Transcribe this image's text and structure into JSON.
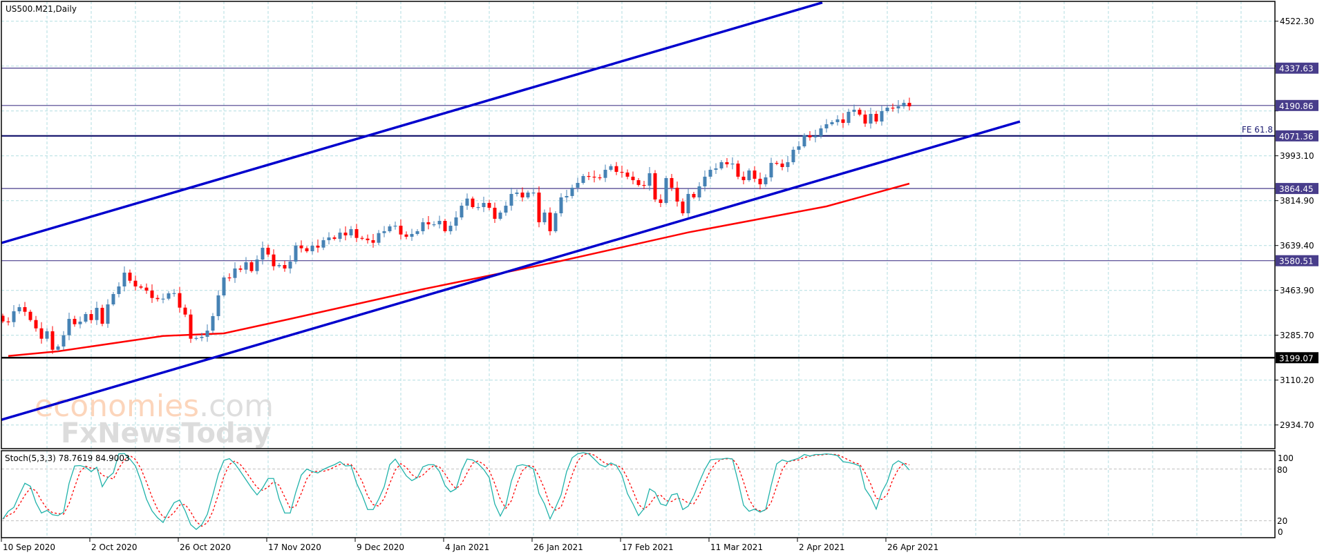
{
  "header": {
    "symbol_label": "US500.M21,Daily"
  },
  "colors": {
    "bull": "#4682b4",
    "bear": "#ff0000",
    "grid": "#b0dde0",
    "stoch_grid": "#c0c0c0",
    "level": "#483d8b",
    "level_strong": "#191970",
    "support": "#000000",
    "trendline": "#0000cd",
    "ma": "#ff0000",
    "stoch_k": "#20b2aa",
    "stoch_d": "#ff0000"
  },
  "chart_data": {
    "type": "candlestick",
    "title": "US500.M21,Daily",
    "ylim": [
      2841.5,
      4600.2
    ],
    "x_tick_labels": [
      "10 Sep 2020",
      "2 Oct 2020",
      "26 Oct 2020",
      "17 Nov 2020",
      "9 Dec 2020",
      "4 Jan 2021",
      "26 Jan 2021",
      "17 Feb 2021",
      "11 Mar 2021",
      "2 Apr 2021",
      "26 Apr 2021"
    ],
    "x_tick_bar_index": [
      0,
      16,
      32,
      48,
      64,
      80,
      96,
      112,
      128,
      144,
      160
    ],
    "y_tick_labels": [
      "4522.30",
      "3993.10",
      "3814.90",
      "3639.40",
      "3463.90",
      "3285.70",
      "3110.20",
      "2934.70"
    ],
    "y_tick_values": [
      4522.3,
      3993.1,
      3814.9,
      3639.4,
      3463.9,
      3285.7,
      3110.2,
      2934.7
    ],
    "first_open": 3364.0,
    "closes": [
      3341.7,
      3339.0,
      3381.6,
      3397.9,
      3379.7,
      3347.1,
      3314.5,
      3273.8,
      3302.9,
      3230.4,
      3243.2,
      3287.4,
      3351.7,
      3330.8,
      3340.9,
      3370.7,
      3347.1,
      3395.2,
      3332.7,
      3408.7,
      3449.4,
      3479.3,
      3533.6,
      3501.8,
      3479.3,
      3474.7,
      3463.0,
      3434.0,
      3429.6,
      3431.2,
      3452.1,
      3453.0,
      3396.0,
      3368.8,
      3273.8,
      3276.5,
      3281.2,
      3305.6,
      3362.6,
      3444.0,
      3514.6,
      3512.7,
      3549.9,
      3545.2,
      3574.3,
      3539.8,
      3585.1,
      3631.3,
      3604.9,
      3558.8,
      3563.4,
      3549.9,
      3577.0,
      3640.2,
      3629.4,
      3617.7,
      3639.4,
      3632.1,
      3661.1,
      3672.0,
      3666.6,
      3691.0,
      3680.1,
      3704.6,
      3670.1,
      3667.4,
      3661.1,
      3651.1,
      3689.1,
      3696.4,
      3715.4,
      3718.1,
      3683.6,
      3674.7,
      3685.6,
      3696.4,
      3731.7,
      3723.5,
      3723.5,
      3737.1,
      3696.4,
      3718.1,
      3750.7,
      3796.8,
      3824.8,
      3791.4,
      3791.4,
      3807.7,
      3788.7,
      3745.3,
      3769.7,
      3796.8,
      3843.0,
      3848.4,
      3829.4,
      3848.4,
      3848.4,
      3731.7,
      3769.7,
      3696.4,
      3767.0,
      3829.4,
      3834.8,
      3867.4,
      3886.4,
      3913.5,
      3910.8,
      3908.1,
      3906.2,
      3938.0,
      3952.3,
      3929.8,
      3927.1,
      3910.8,
      3897.2,
      3878.2,
      3875.5,
      3924.4,
      3821.3,
      3807.7,
      3905.4,
      3867.4,
      3813.1,
      3767.0,
      3843.0,
      3829.4,
      3872.8,
      3910.8,
      3938.0,
      3943.4,
      3967.8,
      3959.7,
      3962.4,
      3910.8,
      3897.2,
      3935.2,
      3902.7,
      3881.0,
      3908.1,
      3965.1,
      3962.4,
      3948.8,
      3967.8,
      4016.7,
      4030.2,
      4073.7,
      4065.5,
      4070.9,
      4100.8,
      4117.1,
      4125.2,
      4136.1,
      4122.5,
      4165.9,
      4174.1,
      4155.1,
      4119.8,
      4157.8,
      4127.9,
      4168.6,
      4182.2,
      4179.5,
      4187.6,
      4201.2,
      4187.6
    ],
    "moving_average": {
      "points": [
        [
          1,
          3206.0
        ],
        [
          10,
          3224.2
        ],
        [
          29,
          3284.7
        ],
        [
          40,
          3294.7
        ],
        [
          52,
          3351.7
        ],
        [
          76,
          3468.4
        ],
        [
          101,
          3579.7
        ],
        [
          124,
          3691.8
        ],
        [
          149,
          3794.1
        ],
        [
          164,
          3883.7
        ]
      ]
    },
    "horizontal_levels": [
      {
        "label": "4337.63",
        "price": 4337.63,
        "style": "level"
      },
      {
        "label": "4190.86",
        "price": 4190.86,
        "style": "level"
      },
      {
        "label": "4071.36",
        "price": 4071.36,
        "style": "level_strong"
      },
      {
        "label": "3864.45",
        "price": 3864.45,
        "style": "level"
      },
      {
        "label": "3580.51",
        "price": 3580.51,
        "style": "level"
      },
      {
        "label": "3199.07",
        "price": 3199.07,
        "style": "support"
      }
    ],
    "annotation": {
      "text": "FE 61.8",
      "price": 4071.36
    },
    "trendlines": [
      {
        "from": [
          -0.5,
          3650.3
        ],
        "to": [
          148.25,
          4595.6
        ]
      },
      {
        "from": [
          -0.5,
          2954.9
        ],
        "to": [
          184.0,
          4127.9
        ]
      }
    ],
    "stochastic": {
      "label": "Stoch(5,3,3)",
      "k_last": "78.7619",
      "d_last": "84.9003",
      "d_period": 3,
      "levels": [
        80,
        20
      ],
      "axis_labels": [
        "100",
        "80",
        "20",
        "0"
      ],
      "k": [
        22,
        31,
        35.5,
        50,
        63.5,
        60,
        41,
        29,
        32,
        27,
        26,
        30,
        63.5,
        83.5,
        84,
        82,
        77,
        82,
        59.5,
        70,
        75.5,
        97.6,
        98,
        91.5,
        83.5,
        66,
        45,
        31.5,
        23.5,
        18,
        30,
        41,
        44,
        31.5,
        15.5,
        10,
        15.5,
        27.5,
        50,
        74,
        90,
        92,
        86,
        77,
        67.5,
        58,
        50,
        58,
        69,
        69,
        45,
        29,
        29,
        53,
        73,
        80,
        77,
        75.5,
        79.5,
        82.5,
        85,
        88.5,
        83.5,
        84,
        63.5,
        50,
        33,
        33,
        45,
        59.5,
        85,
        91.5,
        82,
        72,
        66.5,
        70,
        82.5,
        85,
        85,
        77,
        61,
        53.5,
        57,
        78,
        91.5,
        90.5,
        86,
        79.5,
        70,
        39.5,
        25.5,
        38,
        66,
        83.5,
        85,
        83.5,
        80,
        51.5,
        39.5,
        22,
        35.5,
        50,
        77,
        93,
        97.6,
        99,
        97.6,
        91.5,
        85,
        82.5,
        87,
        84,
        73,
        51.5,
        39.5,
        26,
        34,
        57,
        53,
        39.5,
        37.5,
        50,
        51.5,
        33,
        37,
        49,
        65,
        79.5,
        90.5,
        91.5,
        91.5,
        92.5,
        91.5,
        66,
        38,
        31,
        33.5,
        30,
        33,
        61,
        86,
        90.5,
        88.5,
        90.5,
        92.5,
        96.8,
        95,
        96.8,
        96.8,
        97.6,
        96.8,
        95.5,
        88.5,
        87.5,
        86,
        83.5,
        57,
        47.5,
        33.5,
        53,
        65,
        85,
        89.5,
        86,
        78.8
      ]
    }
  },
  "watermark": {
    "line1_a": "economies",
    "line1_b": ".com",
    "line2": "FxNewsToday"
  }
}
